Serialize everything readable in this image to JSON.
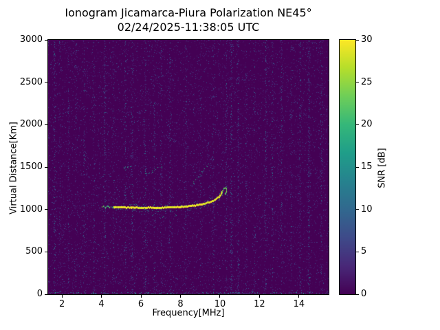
{
  "figure": {
    "title": "Ionogram Jicamarca-Piura Polarization NE45°",
    "subtitle": "02/24/2025-11:38:05 UTC"
  },
  "chart_data": {
    "type": "heatmap",
    "title": "Ionogram Jicamarca-Piura Polarization NE45°",
    "subtitle": "02/24/2025-11:38:05 UTC",
    "xlabel": "Frequency[MHz]",
    "ylabel": "Virtual Distance[Km]",
    "colorbar_label": "SNR [dB]",
    "xlim": [
      1.3,
      15.5
    ],
    "ylim": [
      0,
      3000
    ],
    "clim": [
      0,
      30
    ],
    "xticks": [
      2,
      4,
      6,
      8,
      10,
      12,
      14
    ],
    "yticks": [
      0,
      500,
      1000,
      1500,
      2000,
      2500,
      3000
    ],
    "colorbar_ticks": [
      0,
      5,
      10,
      15,
      20,
      25,
      30
    ],
    "colormap": "viridis",
    "colormap_anchors": [
      "#440154",
      "#482878",
      "#3e4a89",
      "#31688e",
      "#26828e",
      "#1f9e89",
      "#35b779",
      "#6ece58",
      "#b5de2b",
      "#fde725"
    ],
    "background_color": "#440154",
    "grid": false,
    "legend": "none",
    "lead_trace": [
      [
        4.0,
        1035
      ],
      [
        4.3,
        1030
      ],
      [
        4.6,
        1027
      ]
    ],
    "main_trace": [
      [
        4.6,
        1027
      ],
      [
        5.0,
        1024
      ],
      [
        5.5,
        1021
      ],
      [
        6.0,
        1020
      ],
      [
        6.5,
        1020
      ],
      [
        7.0,
        1021
      ],
      [
        7.5,
        1024
      ],
      [
        8.0,
        1030
      ],
      [
        8.4,
        1038
      ],
      [
        8.8,
        1050
      ],
      [
        9.1,
        1063
      ],
      [
        9.4,
        1080
      ],
      [
        9.6,
        1097
      ],
      [
        9.8,
        1122
      ],
      [
        9.95,
        1152
      ],
      [
        10.05,
        1182
      ],
      [
        10.12,
        1212
      ]
    ],
    "main_trace_snr_db": 30,
    "cusp_trace": [
      [
        10.12,
        1212
      ],
      [
        10.18,
        1242
      ],
      [
        10.26,
        1258
      ],
      [
        10.32,
        1242
      ],
      [
        10.3,
        1205
      ],
      [
        10.24,
        1172
      ]
    ],
    "secondary_echo_scatter": [
      [
        5.15,
        1490
      ],
      [
        5.3,
        1505
      ],
      [
        5.45,
        1520
      ],
      [
        6.25,
        1415
      ],
      [
        6.4,
        1435
      ],
      [
        6.55,
        1455
      ],
      [
        6.7,
        1470
      ],
      [
        6.85,
        1490
      ],
      [
        7.0,
        1505
      ],
      [
        8.6,
        1320
      ],
      [
        8.75,
        1345
      ],
      [
        8.9,
        1380
      ],
      [
        9.0,
        1410
      ],
      [
        9.1,
        1440
      ],
      [
        9.2,
        1475
      ],
      [
        9.3,
        1510
      ],
      [
        9.4,
        1545
      ]
    ],
    "sub_trace_scatter": [
      [
        6.6,
        932
      ],
      [
        7.1,
        918
      ],
      [
        7.75,
        936
      ],
      [
        8.3,
        925
      ],
      [
        10.25,
        870
      ],
      [
        10.3,
        760
      ],
      [
        10.28,
        640
      ]
    ],
    "noise": {
      "base_density": 0.09,
      "stripe_density_gain": 0.55,
      "max_base_snr_db": 8,
      "stripe_max_snr_db": 14,
      "bottom_band_density": 0.15
    },
    "rfi_stripes": [
      {
        "freq": 1.6,
        "intensity": 0.45
      },
      {
        "freq": 1.9,
        "intensity": 0.25
      },
      {
        "freq": 2.3,
        "intensity": 0.3
      },
      {
        "freq": 2.7,
        "intensity": 0.25
      },
      {
        "freq": 3.1,
        "intensity": 0.35
      },
      {
        "freq": 3.6,
        "intensity": 0.3
      },
      {
        "freq": 4.15,
        "intensity": 0.5
      },
      {
        "freq": 4.6,
        "intensity": 0.25
      },
      {
        "freq": 5.2,
        "intensity": 0.4
      },
      {
        "freq": 5.55,
        "intensity": 0.45
      },
      {
        "freq": 6.2,
        "intensity": 0.4
      },
      {
        "freq": 6.65,
        "intensity": 0.3
      },
      {
        "freq": 7.0,
        "intensity": 0.3
      },
      {
        "freq": 7.45,
        "intensity": 0.35
      },
      {
        "freq": 8.25,
        "intensity": 0.3
      },
      {
        "freq": 9.0,
        "intensity": 0.25
      },
      {
        "freq": 9.65,
        "intensity": 0.3
      },
      {
        "freq": 10.3,
        "intensity": 0.35
      },
      {
        "freq": 10.55,
        "intensity": 0.45
      },
      {
        "freq": 10.9,
        "intensity": 0.4
      },
      {
        "freq": 11.3,
        "intensity": 0.3
      },
      {
        "freq": 11.75,
        "intensity": 0.25
      },
      {
        "freq": 12.3,
        "intensity": 0.45
      },
      {
        "freq": 12.65,
        "intensity": 0.35
      },
      {
        "freq": 13.1,
        "intensity": 0.4
      },
      {
        "freq": 13.6,
        "intensity": 0.3
      },
      {
        "freq": 14.05,
        "intensity": 0.35
      },
      {
        "freq": 14.5,
        "intensity": 0.5
      },
      {
        "freq": 15.1,
        "intensity": 0.35
      }
    ]
  }
}
